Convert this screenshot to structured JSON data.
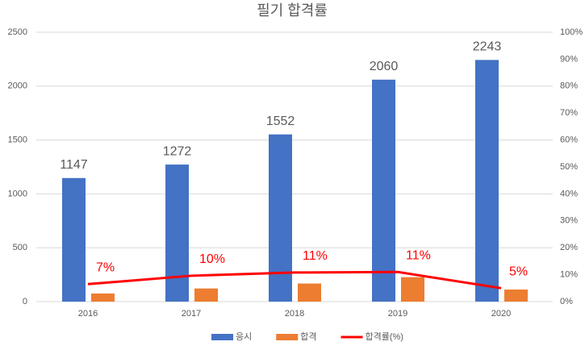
{
  "chart_data": {
    "type": "bar-line",
    "title": "필기 합격률",
    "categories": [
      "2016",
      "2017",
      "2018",
      "2019",
      "2020"
    ],
    "series": [
      {
        "name": "응시",
        "color": "#4472c4",
        "values": [
          1147,
          1272,
          1552,
          2060,
          2243
        ]
      },
      {
        "name": "합격",
        "color": "#ed7d31",
        "values": [
          75,
          122,
          168,
          227,
          112
        ]
      },
      {
        "name": "합격률(%)",
        "color": "#ff0000",
        "axis": "y2",
        "values": [
          6.5,
          9.6,
          10.8,
          11.0,
          5.0
        ],
        "value_labels": [
          "7%",
          "10%",
          "11%",
          "11%",
          "5%"
        ]
      }
    ],
    "ylim": [
      0,
      2500
    ],
    "yticks": [
      0,
      500,
      1000,
      1500,
      2000,
      2500
    ],
    "y2lim": [
      0,
      100
    ],
    "y2ticks": [
      {
        "value": 0,
        "label": "0%"
      },
      {
        "value": 10,
        "label": "10%"
      },
      {
        "value": 20,
        "label": "20%"
      },
      {
        "value": 30,
        "label": "30%"
      },
      {
        "value": 40,
        "label": "40%"
      },
      {
        "value": 50,
        "label": "50%"
      },
      {
        "value": 60,
        "label": "60%"
      },
      {
        "value": 70,
        "label": "70%"
      },
      {
        "value": 80,
        "label": "80%"
      },
      {
        "value": 90,
        "label": "90%"
      },
      {
        "value": 100,
        "label": "100%"
      }
    ],
    "grid": true,
    "legend": "bottom"
  }
}
